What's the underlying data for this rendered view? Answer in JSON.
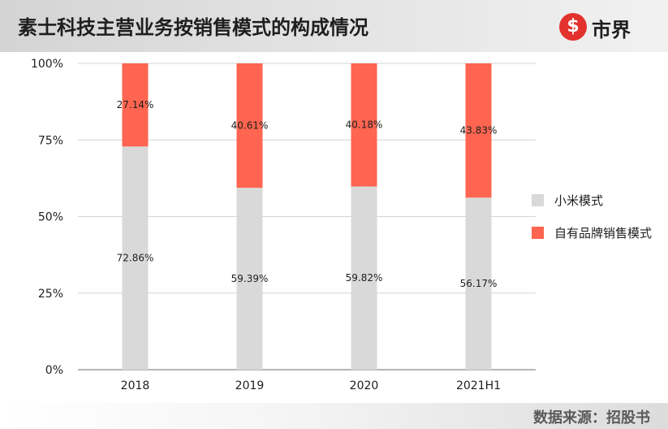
{
  "header": {
    "title": "素士科技主营业务按销售模式的构成情况",
    "logo_text": "市界",
    "logo_mark": "$"
  },
  "source": "数据来源：招股书",
  "chart_data": {
    "type": "bar",
    "stacked": true,
    "categories": [
      "2018",
      "2019",
      "2020",
      "2021H1"
    ],
    "series": [
      {
        "name": "小米模式",
        "values": [
          72.86,
          59.39,
          59.82,
          56.17
        ],
        "labels": [
          "72.86%",
          "59.39%",
          "59.82%",
          "56.17%"
        ],
        "color": "#d9d9d9"
      },
      {
        "name": "自有品牌销售模式",
        "values": [
          27.14,
          40.61,
          40.18,
          43.83
        ],
        "labels": [
          "27.14%",
          "40.61%",
          "40.18%",
          "43.83%"
        ],
        "color": "#ff6550"
      }
    ],
    "yticks": [
      "0%",
      "25%",
      "50%",
      "75%",
      "100%"
    ],
    "ylim": [
      0,
      100
    ],
    "grid": true,
    "legend_position": "right"
  }
}
